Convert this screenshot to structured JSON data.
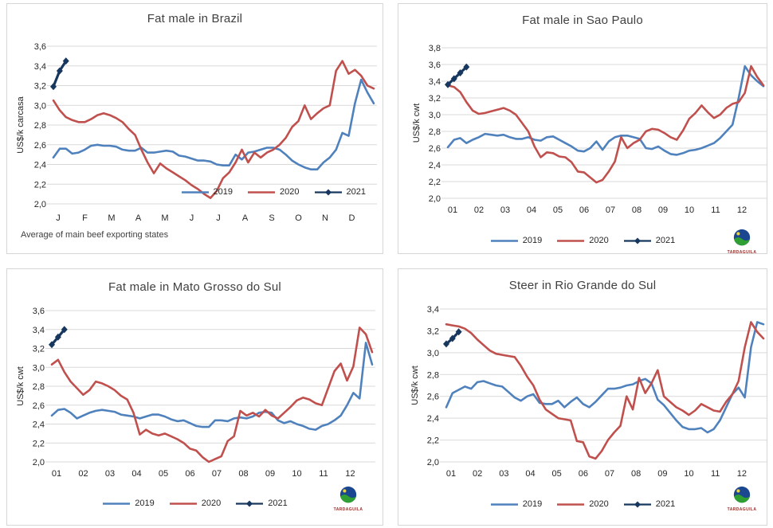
{
  "logo": {
    "text": "TARDAGUILA"
  },
  "colors": {
    "series_2019": "#4F81BD",
    "series_2020": "#C0504D",
    "series_2021": "#17375E",
    "gridline": "#D9D9D9",
    "axis_text": "#262626",
    "title_text": "#404040",
    "panel_border": "#D6D6D6"
  },
  "chart_data": [
    {
      "type": "line",
      "title": "Fat male in Brazil",
      "ylabel": "US$/k carcasa",
      "footnote": "Average of main beef exporting states",
      "ylim": [
        2.0,
        3.6
      ],
      "ystep": 0.2,
      "grid": true,
      "legend_position": "inside-right",
      "xticklabels": [
        "J",
        "F",
        "M",
        "A",
        "M",
        "J",
        "J",
        "A",
        "S",
        "O",
        "N",
        "D"
      ],
      "series": [
        {
          "name": "2019",
          "color": "#4F81BD",
          "marker": "none",
          "values": [
            2.47,
            2.56,
            2.56,
            2.51,
            2.52,
            2.55,
            2.59,
            2.6,
            2.59,
            2.59,
            2.58,
            2.55,
            2.54,
            2.54,
            2.57,
            2.52,
            2.52,
            2.53,
            2.54,
            2.53,
            2.49,
            2.48,
            2.46,
            2.44,
            2.44,
            2.43,
            2.4,
            2.39,
            2.39,
            2.5,
            2.45,
            2.52,
            2.53,
            2.55,
            2.57,
            2.57,
            2.55,
            2.5,
            2.44,
            2.4,
            2.37,
            2.35,
            2.35,
            2.42,
            2.47,
            2.55,
            2.72,
            2.69,
            3.02,
            3.26,
            3.13,
            3.02
          ]
        },
        {
          "name": "2020",
          "color": "#C0504D",
          "marker": "none",
          "values": [
            3.05,
            2.95,
            2.88,
            2.85,
            2.83,
            2.83,
            2.86,
            2.9,
            2.92,
            2.9,
            2.87,
            2.83,
            2.76,
            2.7,
            2.55,
            2.42,
            2.31,
            2.41,
            2.36,
            2.32,
            2.28,
            2.24,
            2.19,
            2.15,
            2.1,
            2.06,
            2.13,
            2.26,
            2.32,
            2.42,
            2.55,
            2.42,
            2.52,
            2.47,
            2.52,
            2.55,
            2.6,
            2.67,
            2.78,
            2.84,
            3.0,
            2.86,
            2.92,
            2.97,
            3.0,
            3.35,
            3.45,
            3.32,
            3.36,
            3.3,
            3.2,
            3.17
          ]
        },
        {
          "name": "2021",
          "color": "#17375E",
          "marker": "diamond",
          "values": [
            3.19,
            3.35,
            3.45
          ]
        }
      ]
    },
    {
      "type": "line",
      "title": "Fat male in Sao Paulo",
      "ylabel": "US$/k cwt",
      "footnote": "",
      "ylim": [
        2.0,
        3.8
      ],
      "ystep": 0.2,
      "grid": true,
      "legend_position": "bottom-center",
      "xticklabels": [
        "01",
        "02",
        "03",
        "04",
        "05",
        "06",
        "07",
        "08",
        "09",
        "10",
        "11",
        "12"
      ],
      "series": [
        {
          "name": "2019",
          "color": "#4F81BD",
          "marker": "none",
          "values": [
            2.61,
            2.7,
            2.72,
            2.66,
            2.7,
            2.73,
            2.77,
            2.76,
            2.75,
            2.76,
            2.73,
            2.71,
            2.71,
            2.73,
            2.7,
            2.69,
            2.73,
            2.74,
            2.7,
            2.66,
            2.62,
            2.57,
            2.56,
            2.6,
            2.68,
            2.58,
            2.68,
            2.73,
            2.75,
            2.75,
            2.73,
            2.71,
            2.6,
            2.59,
            2.62,
            2.57,
            2.53,
            2.52,
            2.54,
            2.57,
            2.58,
            2.6,
            2.63,
            2.66,
            2.72,
            2.8,
            2.88,
            3.2,
            3.58,
            3.47,
            3.4,
            3.34
          ]
        },
        {
          "name": "2020",
          "color": "#C0504D",
          "marker": "none",
          "values": [
            3.35,
            3.33,
            3.27,
            3.15,
            3.05,
            3.01,
            3.02,
            3.04,
            3.06,
            3.08,
            3.05,
            3.0,
            2.9,
            2.8,
            2.62,
            2.49,
            2.55,
            2.54,
            2.5,
            2.49,
            2.43,
            2.32,
            2.31,
            2.25,
            2.19,
            2.22,
            2.32,
            2.44,
            2.73,
            2.6,
            2.66,
            2.7,
            2.8,
            2.83,
            2.82,
            2.78,
            2.73,
            2.7,
            2.81,
            2.95,
            3.02,
            3.11,
            3.03,
            2.96,
            3.0,
            3.08,
            3.13,
            3.15,
            3.26,
            3.58,
            3.45,
            3.35
          ]
        },
        {
          "name": "2021",
          "color": "#17375E",
          "marker": "diamond",
          "values": [
            3.36,
            3.43,
            3.5,
            3.57
          ]
        }
      ]
    },
    {
      "type": "line",
      "title": "Fat male in Mato Grosso do Sul",
      "ylabel": "US$/k cwt",
      "footnote": "",
      "ylim": [
        2.0,
        3.6
      ],
      "ystep": 0.2,
      "grid": true,
      "legend_position": "bottom-center",
      "xticklabels": [
        "01",
        "02",
        "03",
        "04",
        "05",
        "06",
        "07",
        "08",
        "09",
        "10",
        "11",
        "12"
      ],
      "series": [
        {
          "name": "2019",
          "color": "#4F81BD",
          "marker": "none",
          "values": [
            2.49,
            2.55,
            2.56,
            2.52,
            2.46,
            2.49,
            2.52,
            2.54,
            2.55,
            2.54,
            2.53,
            2.5,
            2.49,
            2.48,
            2.46,
            2.48,
            2.5,
            2.5,
            2.48,
            2.45,
            2.43,
            2.44,
            2.41,
            2.38,
            2.37,
            2.37,
            2.44,
            2.44,
            2.43,
            2.46,
            2.47,
            2.46,
            2.48,
            2.52,
            2.53,
            2.52,
            2.44,
            2.41,
            2.43,
            2.4,
            2.38,
            2.35,
            2.34,
            2.38,
            2.4,
            2.44,
            2.49,
            2.6,
            2.73,
            2.67,
            3.26,
            3.03
          ]
        },
        {
          "name": "2020",
          "color": "#C0504D",
          "marker": "none",
          "values": [
            3.03,
            3.08,
            2.95,
            2.85,
            2.78,
            2.71,
            2.76,
            2.85,
            2.83,
            2.8,
            2.76,
            2.7,
            2.66,
            2.52,
            2.29,
            2.34,
            2.3,
            2.28,
            2.3,
            2.27,
            2.24,
            2.2,
            2.14,
            2.12,
            2.05,
            2.0,
            2.03,
            2.06,
            2.22,
            2.27,
            2.54,
            2.49,
            2.52,
            2.48,
            2.55,
            2.49,
            2.46,
            2.52,
            2.58,
            2.65,
            2.68,
            2.66,
            2.62,
            2.6,
            2.78,
            2.96,
            3.04,
            2.86,
            3.01,
            3.42,
            3.35,
            3.16
          ]
        },
        {
          "name": "2021",
          "color": "#17375E",
          "marker": "diamond",
          "values": [
            3.24,
            3.32,
            3.4
          ]
        }
      ]
    },
    {
      "type": "line",
      "title": "Steer in Rio Grande do Sul",
      "ylabel": "US$/k cwt",
      "footnote": "",
      "ylim": [
        2.0,
        3.4
      ],
      "ystep": 0.2,
      "grid": true,
      "legend_position": "bottom-center",
      "xticklabels": [
        "01",
        "02",
        "03",
        "04",
        "05",
        "06",
        "07",
        "08",
        "09",
        "10",
        "11",
        "12"
      ],
      "series": [
        {
          "name": "2019",
          "color": "#4F81BD",
          "marker": "none",
          "values": [
            2.5,
            2.63,
            2.66,
            2.69,
            2.67,
            2.73,
            2.74,
            2.72,
            2.7,
            2.69,
            2.64,
            2.59,
            2.56,
            2.6,
            2.62,
            2.54,
            2.53,
            2.53,
            2.56,
            2.5,
            2.55,
            2.59,
            2.53,
            2.5,
            2.55,
            2.61,
            2.67,
            2.67,
            2.68,
            2.7,
            2.71,
            2.74,
            2.76,
            2.72,
            2.57,
            2.52,
            2.45,
            2.38,
            2.32,
            2.3,
            2.3,
            2.31,
            2.27,
            2.3,
            2.38,
            2.5,
            2.62,
            2.68,
            2.59,
            3.05,
            3.28,
            3.26
          ]
        },
        {
          "name": "2020",
          "color": "#C0504D",
          "marker": "none",
          "values": [
            3.26,
            3.25,
            3.24,
            3.22,
            3.18,
            3.12,
            3.07,
            3.02,
            2.99,
            2.98,
            2.97,
            2.96,
            2.88,
            2.78,
            2.7,
            2.57,
            2.48,
            2.44,
            2.4,
            2.39,
            2.38,
            2.19,
            2.18,
            2.05,
            2.03,
            2.1,
            2.2,
            2.27,
            2.33,
            2.6,
            2.48,
            2.77,
            2.63,
            2.72,
            2.84,
            2.6,
            2.55,
            2.5,
            2.47,
            2.43,
            2.47,
            2.53,
            2.5,
            2.47,
            2.46,
            2.55,
            2.62,
            2.74,
            3.05,
            3.28,
            3.19,
            3.13
          ]
        },
        {
          "name": "2021",
          "color": "#17375E",
          "marker": "diamond",
          "values": [
            3.08,
            3.13,
            3.19
          ]
        }
      ]
    }
  ]
}
